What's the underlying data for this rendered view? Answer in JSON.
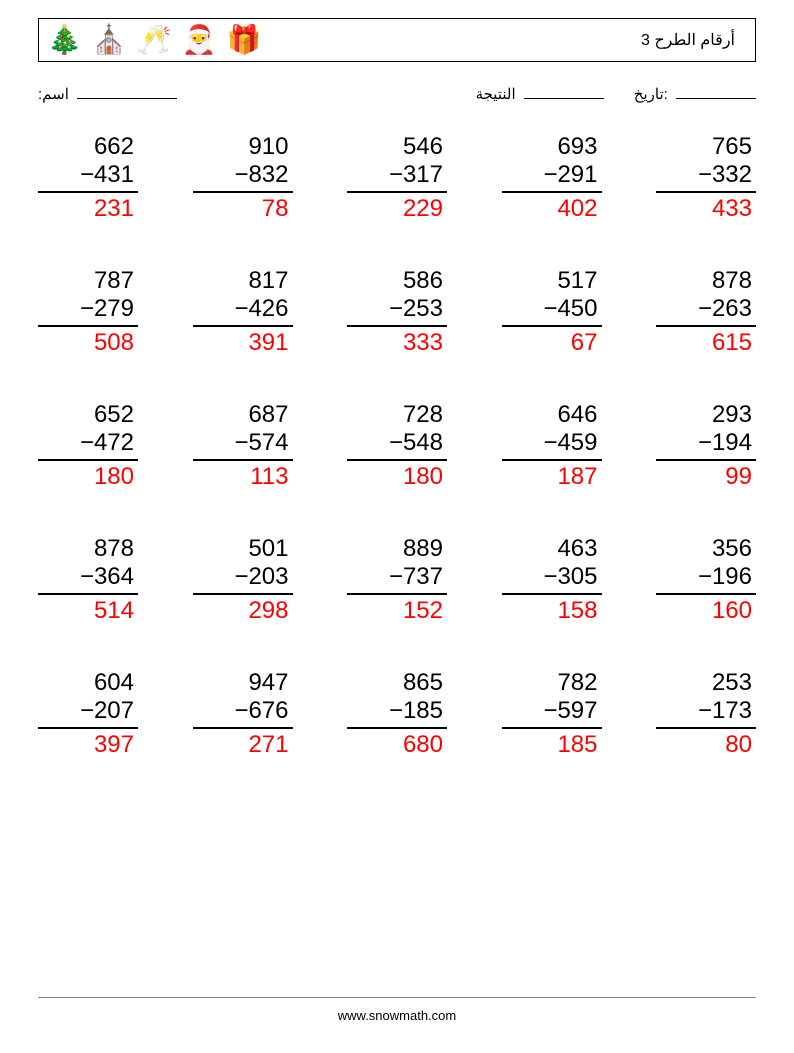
{
  "title": "أرقام الطرح 3",
  "label_name": "اسم:",
  "label_score": "النتيجة",
  "label_date": "تاريخ:",
  "footer": "www.snowmath.com",
  "icons": [
    "🎄",
    "⛪",
    "🥂",
    "🎅",
    "🎁"
  ],
  "minus": "−",
  "problems": [
    [
      {
        "a": "662",
        "b": "431",
        "r": "231"
      },
      {
        "a": "910",
        "b": "832",
        "r": "78"
      },
      {
        "a": "546",
        "b": "317",
        "r": "229"
      },
      {
        "a": "693",
        "b": "291",
        "r": "402"
      },
      {
        "a": "765",
        "b": "332",
        "r": "433"
      }
    ],
    [
      {
        "a": "787",
        "b": "279",
        "r": "508"
      },
      {
        "a": "817",
        "b": "426",
        "r": "391"
      },
      {
        "a": "586",
        "b": "253",
        "r": "333"
      },
      {
        "a": "517",
        "b": "450",
        "r": "67"
      },
      {
        "a": "878",
        "b": "263",
        "r": "615"
      }
    ],
    [
      {
        "a": "652",
        "b": "472",
        "r": "180"
      },
      {
        "a": "687",
        "b": "574",
        "r": "113"
      },
      {
        "a": "728",
        "b": "548",
        "r": "180"
      },
      {
        "a": "646",
        "b": "459",
        "r": "187"
      },
      {
        "a": "293",
        "b": "194",
        "r": "99"
      }
    ],
    [
      {
        "a": "878",
        "b": "364",
        "r": "514"
      },
      {
        "a": "501",
        "b": "203",
        "r": "298"
      },
      {
        "a": "889",
        "b": "737",
        "r": "152"
      },
      {
        "a": "463",
        "b": "305",
        "r": "158"
      },
      {
        "a": "356",
        "b": "196",
        "r": "160"
      }
    ],
    [
      {
        "a": "604",
        "b": "207",
        "r": "397"
      },
      {
        "a": "947",
        "b": "676",
        "r": "271"
      },
      {
        "a": "865",
        "b": "185",
        "r": "680"
      },
      {
        "a": "782",
        "b": "597",
        "r": "185"
      },
      {
        "a": "253",
        "b": "173",
        "r": "80"
      }
    ]
  ]
}
